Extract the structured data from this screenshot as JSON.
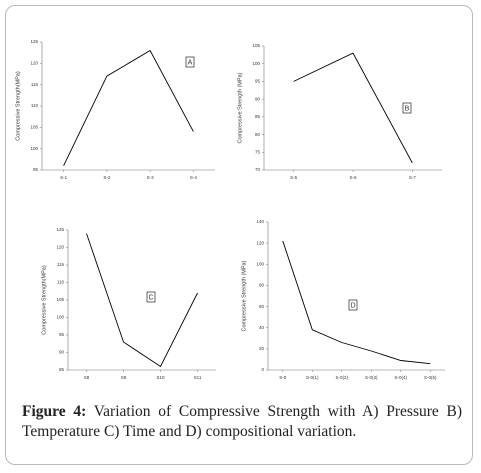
{
  "chart_data": [
    {
      "type": "line",
      "annotation": "A",
      "ylabel": "Compressive Strength(MPa)",
      "categories": [
        "S-1",
        "S-2",
        "S-3",
        "S-4"
      ],
      "values": [
        96,
        117,
        123,
        104
      ],
      "color": "#000000",
      "ylim": [
        95,
        125
      ],
      "yticks": [
        95,
        100,
        105,
        110,
        115,
        120,
        125
      ]
    },
    {
      "type": "line",
      "annotation": "B",
      "ylabel": "Compressive Strength (MPa)",
      "categories": [
        "S-5",
        "S-6",
        "S-7"
      ],
      "values": [
        95,
        103,
        72
      ],
      "color": "#000000",
      "ylim": [
        70,
        105
      ],
      "yticks": [
        70,
        75,
        80,
        85,
        90,
        95,
        100,
        105
      ]
    },
    {
      "type": "line",
      "annotation": "C",
      "ylabel": "Compressive Strength(MPa)",
      "categories": [
        "S8",
        "S9",
        "S10",
        "S11"
      ],
      "values": [
        124,
        93,
        86,
        107
      ],
      "color": "#000000",
      "ylim": [
        85,
        125
      ],
      "yticks": [
        85,
        90,
        95,
        100,
        105,
        110,
        115,
        120,
        125
      ]
    },
    {
      "type": "line",
      "annotation": "D",
      "ylabel": "Compressive Strength (MPa)",
      "categories": [
        "S-0",
        "S-0(1)",
        "S-0(2)",
        "S-0(3)",
        "S-0(4)",
        "S-0(5)"
      ],
      "values": [
        122,
        38,
        26,
        18,
        9,
        6
      ],
      "color": "#000000",
      "ylim": [
        0,
        140
      ],
      "yticks": [
        0,
        20,
        40,
        60,
        80,
        100,
        120,
        140
      ]
    }
  ],
  "caption": {
    "label": "Figure 4:",
    "text": "Variation of Compressive Strength with A) Pressure B) Temperature C) Time and D) compositional variation."
  }
}
